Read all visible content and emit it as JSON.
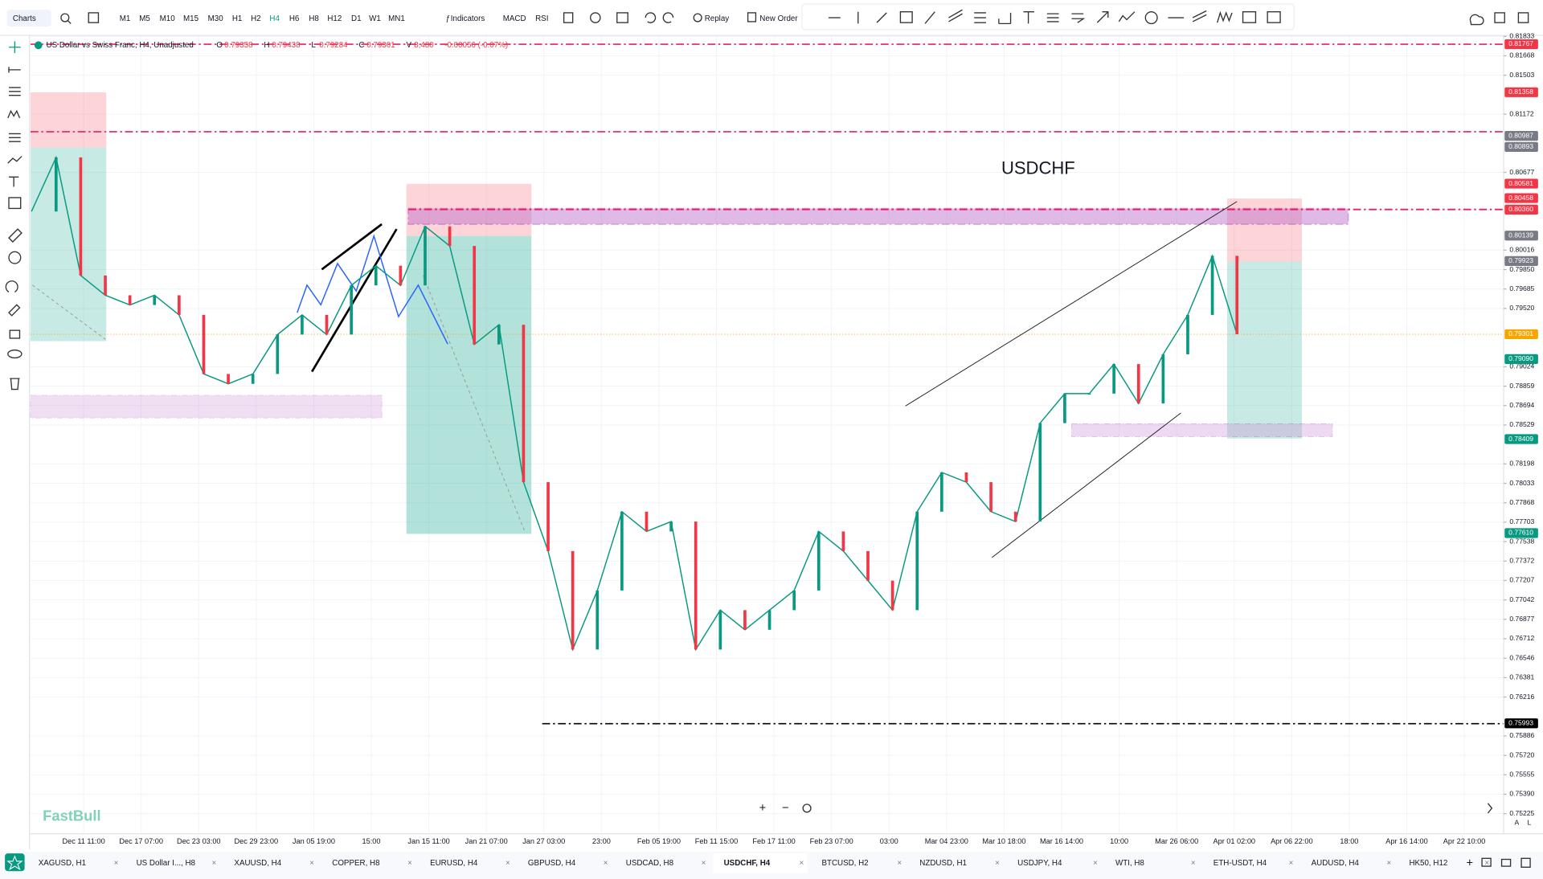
{
  "toolbar": {
    "menu": "Charts",
    "timeframes": [
      "M1",
      "M5",
      "M10",
      "M15",
      "M30",
      "H1",
      "H2",
      "H4",
      "H6",
      "H8",
      "H12",
      "D1",
      "W1",
      "MN1"
    ],
    "active_timeframe": 7,
    "indicators": "Indicators",
    "studies": [
      "MACD",
      "RSI"
    ],
    "replay": "Replay",
    "new_order": "New Order"
  },
  "legend": {
    "symbol": "US Dollar vs Swiss Franc, H4, Unadjusted",
    "fields": [
      {
        "key": "O",
        "value": "0.79358"
      },
      {
        "key": "H",
        "value": "0.79438"
      },
      {
        "key": "L",
        "value": "0.79284"
      },
      {
        "key": "C",
        "value": "0.79301"
      },
      {
        "key": "V",
        "value": "8,480"
      }
    ],
    "change": "-0.00056 (-0.07%)"
  },
  "chart": {
    "title": "USDCHF",
    "watermark": "FastBull",
    "closes": [
      0.80344,
      0.80804,
      0.798,
      0.79632,
      0.79549,
      0.79632,
      0.79465,
      0.78963,
      0.78879,
      0.78963,
      0.79298,
      0.79465,
      0.79298,
      0.79716,
      0.79883,
      0.79716,
      0.80218,
      0.80051,
      0.79214,
      0.79381,
      0.78043,
      0.77457,
      0.7662,
      0.77122,
      0.77792,
      0.77624,
      0.77708,
      0.7662,
      0.76955,
      0.76788,
      0.76955,
      0.77122,
      0.77624,
      0.77457,
      0.77206,
      0.76955,
      0.77792,
      0.78126,
      0.78043,
      0.77792,
      0.77708,
      0.78545,
      0.78796,
      0.78796,
      0.79047,
      0.78712,
      0.7913,
      0.79465,
      0.79967,
      0.79301
    ],
    "price_axis": {
      "ticks": [
        0.81833,
        0.81668,
        0.81503,
        0.81172,
        0.80677,
        0.80016,
        {
          "value": 0.7985,
          "label": "0.79850"
        },
        0.79685,
        {
          "value": 0.7952,
          "label": "0.79520"
        },
        0.79024,
        0.78859,
        0.78694,
        0.78529,
        0.78198,
        0.78033,
        0.77868,
        0.77703,
        0.77538,
        0.77372,
        0.77207,
        0.77042,
        0.76877,
        0.76712,
        0.76546,
        0.76381,
        0.76216,
        0.75886,
        {
          "value": 0.7572,
          "label": "0.75720"
        },
        0.75555,
        {
          "value": 0.7539,
          "label": "0.75390"
        },
        0.75225
      ],
      "markers": [
        {
          "value": 0.81767,
          "color": "#f23645"
        },
        {
          "value": 0.81358,
          "color": "#f23645"
        },
        {
          "value": 0.80987,
          "color": "#787b86"
        },
        {
          "value": 0.80893,
          "color": "#787b86"
        },
        {
          "value": 0.80581,
          "color": "#f23645"
        },
        {
          "value": 0.80458,
          "color": "#f23645"
        },
        {
          "value": 0.8036,
          "label": "0.80360",
          "color": "#f23645"
        },
        {
          "value": 0.80139,
          "color": "#787b86"
        },
        {
          "value": 0.79923,
          "color": "#787b86"
        },
        {
          "value": 0.79301,
          "color": "#f7a600"
        },
        {
          "value": 0.7909,
          "label": "0.79090",
          "color": "#089981"
        },
        {
          "value": 0.78409,
          "color": "#089981"
        },
        {
          "value": 0.7761,
          "label": "0.77610",
          "color": "#089981"
        },
        {
          "value": 0.75993,
          "color": "#000000"
        }
      ]
    },
    "time_axis": [
      "Dec 11 11:00",
      "Dec 17 07:00",
      "Dec 23 03:00",
      "Dec 29 23:00",
      "Jan 05 19:00",
      "15:00",
      "Jan 15 11:00",
      "Jan 21 07:00",
      "Jan 27 03:00",
      "23:00",
      "Feb 05 19:00",
      "Feb 11 15:00",
      "Feb 17 11:00",
      "Feb 23 07:00",
      "03:00",
      "Mar 04 23:00",
      "Mar 10 18:00",
      "Mar 16 14:00",
      "10:00",
      "Mar 26 06:00",
      "Apr 01 02:00",
      "Apr 06 22:00",
      "18:00",
      "Apr 16 14:00",
      "Apr 22 10:00"
    ]
  },
  "tabs": {
    "items": [
      "XAGUSD, H1",
      "US Dollar I..., H8",
      "XAUUSD, H4",
      "COPPER, H8",
      "EURUSD, H4",
      "GBPUSD, H4",
      "USDCAD, H8",
      "USDCHF, H4",
      "BTCUSD, H2",
      "NZDUSD, H1",
      "USDJPY, H4",
      "WTI, H8",
      "ETH-USDT, H4",
      "AUDUSD, H4",
      "HK50, H12"
    ],
    "active": 7
  }
}
